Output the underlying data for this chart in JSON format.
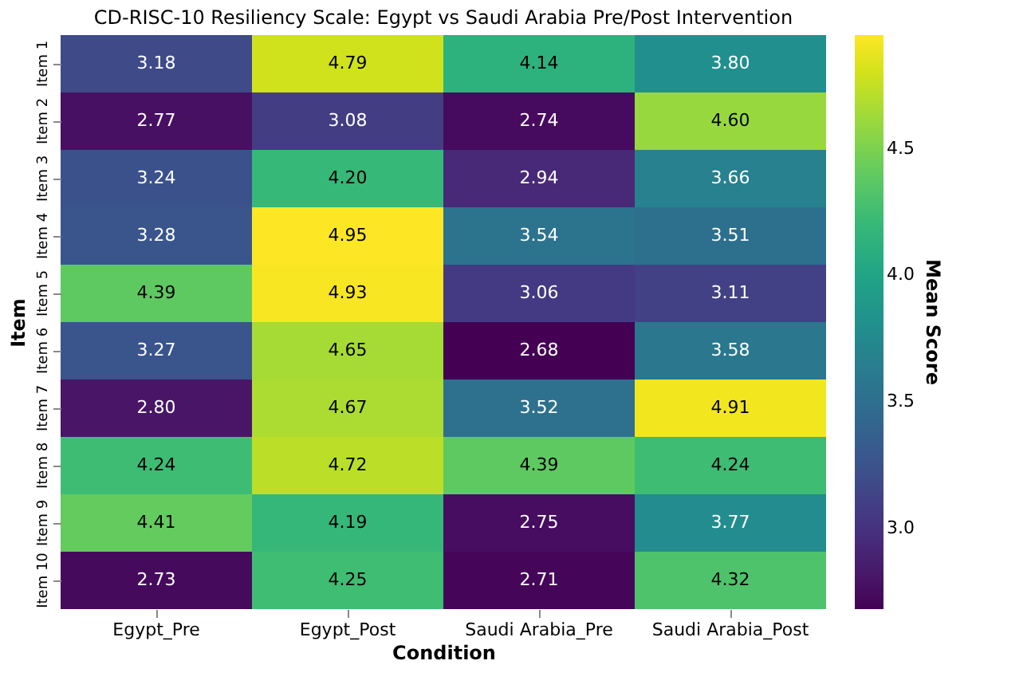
{
  "chart_data": {
    "type": "heatmap",
    "title": "CD-RISC-10 Resiliency Scale: Egypt vs Saudi Arabia Pre/Post Intervention",
    "xlabel": "Condition",
    "ylabel": "Item",
    "clabel": "Mean Score",
    "categories": [
      "Egypt_Pre",
      "Egypt_Post",
      "Saudi Arabia_Pre",
      "Saudi Arabia_Post"
    ],
    "y_categories": [
      "Item 1",
      "Item 2",
      "Item 3",
      "Item 4",
      "Item 5",
      "Item 6",
      "Item 7",
      "Item 8",
      "Item 9",
      "Item 10"
    ],
    "cells": [
      [
        3.18,
        4.79,
        4.14,
        3.8
      ],
      [
        2.77,
        3.08,
        2.74,
        4.6
      ],
      [
        3.24,
        4.2,
        2.94,
        3.66
      ],
      [
        3.28,
        4.95,
        3.54,
        3.51
      ],
      [
        4.39,
        4.93,
        3.06,
        3.11
      ],
      [
        3.27,
        4.65,
        2.68,
        3.58
      ],
      [
        2.8,
        4.67,
        3.52,
        4.91
      ],
      [
        4.24,
        4.72,
        4.39,
        4.24
      ],
      [
        4.41,
        4.19,
        2.75,
        3.77
      ],
      [
        2.73,
        4.25,
        2.71,
        4.32
      ]
    ],
    "cell_labels": [
      [
        "3.18",
        "4.79",
        "4.14",
        "3.80"
      ],
      [
        "2.77",
        "3.08",
        "2.74",
        "4.60"
      ],
      [
        "3.24",
        "4.20",
        "2.94",
        "3.66"
      ],
      [
        "3.28",
        "4.95",
        "3.54",
        "3.51"
      ],
      [
        "4.39",
        "4.93",
        "3.06",
        "3.11"
      ],
      [
        "3.27",
        "4.65",
        "2.68",
        "3.58"
      ],
      [
        "2.80",
        "4.67",
        "3.52",
        "4.91"
      ],
      [
        "4.24",
        "4.72",
        "4.39",
        "4.24"
      ],
      [
        "4.41",
        "4.19",
        "2.75",
        "3.77"
      ],
      [
        "2.73",
        "4.25",
        "2.71",
        "4.32"
      ]
    ],
    "clim": [
      2.68,
      4.95
    ],
    "cticks": [
      {
        "value": 3,
        "label": "3.0"
      },
      {
        "value": 3.5,
        "label": "3.5"
      },
      {
        "value": 4,
        "label": "4.0"
      },
      {
        "value": 4.5,
        "label": "4.5"
      }
    ]
  }
}
